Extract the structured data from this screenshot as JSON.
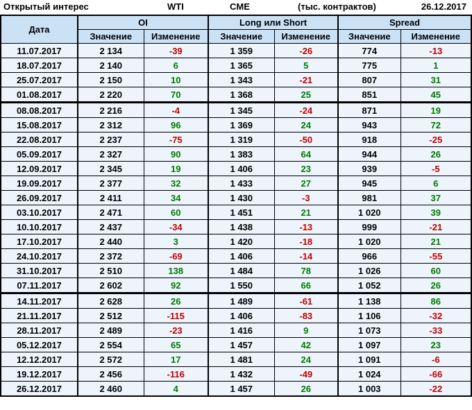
{
  "title": {
    "label": "Открытый интерес",
    "instrument": "WTI",
    "exchange": "CME",
    "units": "(тыс. контрактов)",
    "report_date": "26.12.2017"
  },
  "colors": {
    "positive_change": "#007a00",
    "negative_change": "#c00000",
    "header_bg": "#cbe2f6",
    "row_bg": "#edf4fb",
    "border": "#000000"
  },
  "table": {
    "date_header": "Дата",
    "groups": [
      {
        "label": "OI"
      },
      {
        "label": "Long или Short"
      },
      {
        "label": "Spread"
      }
    ],
    "sub_headers": {
      "value": "Значение",
      "change": "Изменение"
    },
    "rows": [
      {
        "date": "11.07.2017",
        "oi_value": "2 134",
        "oi_change": "-39",
        "long_value": "1 359",
        "long_change": "-26",
        "spread_value": "774",
        "spread_change": "-13",
        "thick_below": false
      },
      {
        "date": "18.07.2017",
        "oi_value": "2 140",
        "oi_change": "6",
        "long_value": "1 365",
        "long_change": "5",
        "spread_value": "775",
        "spread_change": "1",
        "thick_below": false
      },
      {
        "date": "25.07.2017",
        "oi_value": "2 150",
        "oi_change": "10",
        "long_value": "1 343",
        "long_change": "-21",
        "spread_value": "807",
        "spread_change": "31",
        "thick_below": false
      },
      {
        "date": "01.08.2017",
        "oi_value": "2 220",
        "oi_change": "70",
        "long_value": "1 368",
        "long_change": "25",
        "spread_value": "851",
        "spread_change": "45",
        "thick_below": true
      },
      {
        "date": "08.08.2017",
        "oi_value": "2 216",
        "oi_change": "-4",
        "long_value": "1 345",
        "long_change": "-24",
        "spread_value": "871",
        "spread_change": "19",
        "thick_below": false
      },
      {
        "date": "15.08.2017",
        "oi_value": "2 312",
        "oi_change": "96",
        "long_value": "1 369",
        "long_change": "24",
        "spread_value": "943",
        "spread_change": "72",
        "thick_below": false
      },
      {
        "date": "22.08.2017",
        "oi_value": "2 237",
        "oi_change": "-75",
        "long_value": "1 319",
        "long_change": "-50",
        "spread_value": "918",
        "spread_change": "-25",
        "thick_below": false
      },
      {
        "date": "05.09.2017",
        "oi_value": "2 327",
        "oi_change": "90",
        "long_value": "1 383",
        "long_change": "64",
        "spread_value": "944",
        "spread_change": "26",
        "thick_below": false
      },
      {
        "date": "12.09.2017",
        "oi_value": "2 345",
        "oi_change": "19",
        "long_value": "1 406",
        "long_change": "23",
        "spread_value": "939",
        "spread_change": "-5",
        "thick_below": false
      },
      {
        "date": "19.09.2017",
        "oi_value": "2 377",
        "oi_change": "32",
        "long_value": "1 433",
        "long_change": "27",
        "spread_value": "945",
        "spread_change": "6",
        "thick_below": false
      },
      {
        "date": "26.09.2017",
        "oi_value": "2 411",
        "oi_change": "34",
        "long_value": "1 430",
        "long_change": "-3",
        "spread_value": "981",
        "spread_change": "37",
        "thick_below": false
      },
      {
        "date": "03.10.2017",
        "oi_value": "2 471",
        "oi_change": "60",
        "long_value": "1 451",
        "long_change": "21",
        "spread_value": "1 020",
        "spread_change": "39",
        "thick_below": false
      },
      {
        "date": "10.10.2017",
        "oi_value": "2 437",
        "oi_change": "-34",
        "long_value": "1 438",
        "long_change": "-13",
        "spread_value": "999",
        "spread_change": "-21",
        "thick_below": false
      },
      {
        "date": "17.10.2017",
        "oi_value": "2 440",
        "oi_change": "3",
        "long_value": "1 420",
        "long_change": "-18",
        "spread_value": "1 020",
        "spread_change": "21",
        "thick_below": false
      },
      {
        "date": "24.10.2017",
        "oi_value": "2 372",
        "oi_change": "-69",
        "long_value": "1 406",
        "long_change": "-14",
        "spread_value": "966",
        "spread_change": "-55",
        "thick_below": false
      },
      {
        "date": "31.10.2017",
        "oi_value": "2 510",
        "oi_change": "138",
        "long_value": "1 484",
        "long_change": "78",
        "spread_value": "1 026",
        "spread_change": "60",
        "thick_below": false
      },
      {
        "date": "07.11.2017",
        "oi_value": "2 602",
        "oi_change": "92",
        "long_value": "1 550",
        "long_change": "66",
        "spread_value": "1 052",
        "spread_change": "26",
        "thick_below": true
      },
      {
        "date": "14.11.2017",
        "oi_value": "2 628",
        "oi_change": "26",
        "long_value": "1 489",
        "long_change": "-61",
        "spread_value": "1 138",
        "spread_change": "86",
        "thick_below": false
      },
      {
        "date": "21.11.2017",
        "oi_value": "2 512",
        "oi_change": "-115",
        "long_value": "1 406",
        "long_change": "-83",
        "spread_value": "1 106",
        "spread_change": "-32",
        "thick_below": false
      },
      {
        "date": "28.11.2017",
        "oi_value": "2 489",
        "oi_change": "-23",
        "long_value": "1 416",
        "long_change": "9",
        "spread_value": "1 073",
        "spread_change": "-33",
        "thick_below": false
      },
      {
        "date": "05.12.2017",
        "oi_value": "2 554",
        "oi_change": "65",
        "long_value": "1 457",
        "long_change": "42",
        "spread_value": "1 097",
        "spread_change": "23",
        "thick_below": false
      },
      {
        "date": "12.12.2017",
        "oi_value": "2 572",
        "oi_change": "17",
        "long_value": "1 481",
        "long_change": "24",
        "spread_value": "1 091",
        "spread_change": "-6",
        "thick_below": false
      },
      {
        "date": "19.12.2017",
        "oi_value": "2 456",
        "oi_change": "-116",
        "long_value": "1 432",
        "long_change": "-49",
        "spread_value": "1 024",
        "spread_change": "-66",
        "thick_below": false
      },
      {
        "date": "26.12.2017",
        "oi_value": "2 460",
        "oi_change": "4",
        "long_value": "1 457",
        "long_change": "26",
        "spread_value": "1 003",
        "spread_change": "-22",
        "thick_below": false
      }
    ]
  }
}
